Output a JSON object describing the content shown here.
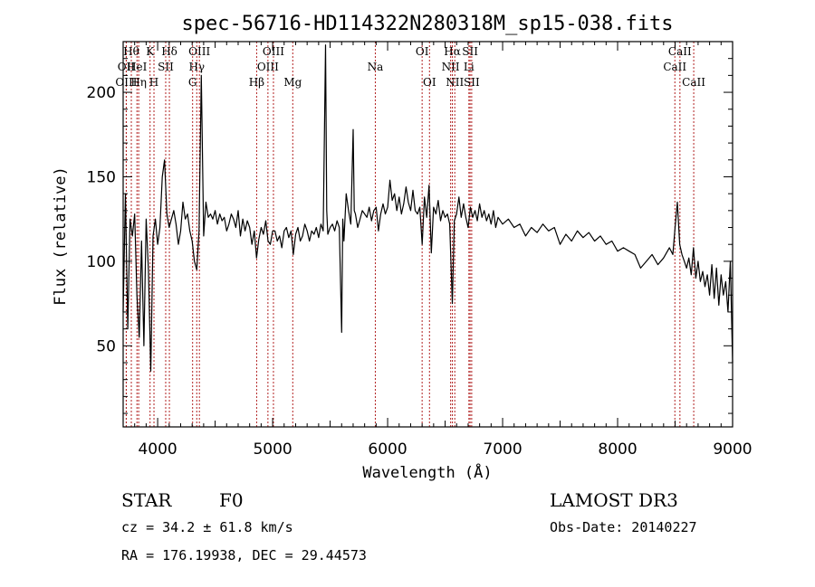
{
  "chart_data": {
    "type": "line",
    "title": "spec-56716-HD114322N280318M_sp15-038.fits",
    "xlabel": "Wavelength (Å)",
    "ylabel": "Flux (relative)",
    "xlim": [
      3700,
      9000
    ],
    "ylim": [
      2,
      230
    ],
    "xticks": [
      4000,
      5000,
      6000,
      7000,
      8000,
      9000
    ],
    "yticks": [
      50,
      100,
      150,
      200
    ],
    "grid": false,
    "line_color": "#000000",
    "marker_color": "#b22222",
    "series": [
      {
        "points": [
          [
            3700,
            70
          ],
          [
            3720,
            140
          ],
          [
            3740,
            60
          ],
          [
            3760,
            125
          ],
          [
            3780,
            115
          ],
          [
            3800,
            128
          ],
          [
            3820,
            80
          ],
          [
            3840,
            55
          ],
          [
            3860,
            112
          ],
          [
            3880,
            50
          ],
          [
            3900,
            125
          ],
          [
            3920,
            95
          ],
          [
            3940,
            35
          ],
          [
            3960,
            115
          ],
          [
            3980,
            125
          ],
          [
            4000,
            110
          ],
          [
            4020,
            120
          ],
          [
            4040,
            150
          ],
          [
            4060,
            160
          ],
          [
            4080,
            128
          ],
          [
            4100,
            120
          ],
          [
            4120,
            125
          ],
          [
            4140,
            130
          ],
          [
            4160,
            122
          ],
          [
            4180,
            110
          ],
          [
            4200,
            118
          ],
          [
            4220,
            135
          ],
          [
            4240,
            125
          ],
          [
            4260,
            128
          ],
          [
            4280,
            118
          ],
          [
            4300,
            112
          ],
          [
            4320,
            100
          ],
          [
            4340,
            95
          ],
          [
            4360,
            118
          ],
          [
            4380,
            210
          ],
          [
            4400,
            115
          ],
          [
            4420,
            135
          ],
          [
            4440,
            126
          ],
          [
            4460,
            128
          ],
          [
            4480,
            125
          ],
          [
            4500,
            130
          ],
          [
            4520,
            122
          ],
          [
            4540,
            128
          ],
          [
            4560,
            124
          ],
          [
            4580,
            126
          ],
          [
            4600,
            118
          ],
          [
            4620,
            122
          ],
          [
            4640,
            128
          ],
          [
            4660,
            125
          ],
          [
            4680,
            120
          ],
          [
            4700,
            130
          ],
          [
            4720,
            115
          ],
          [
            4740,
            125
          ],
          [
            4760,
            118
          ],
          [
            4780,
            124
          ],
          [
            4800,
            120
          ],
          [
            4820,
            110
          ],
          [
            4840,
            118
          ],
          [
            4860,
            102
          ],
          [
            4880,
            113
          ],
          [
            4900,
            120
          ],
          [
            4920,
            116
          ],
          [
            4940,
            124
          ],
          [
            4960,
            112
          ],
          [
            4980,
            110
          ],
          [
            5000,
            118
          ],
          [
            5020,
            118
          ],
          [
            5040,
            112
          ],
          [
            5060,
            115
          ],
          [
            5080,
            108
          ],
          [
            5100,
            118
          ],
          [
            5120,
            120
          ],
          [
            5140,
            114
          ],
          [
            5160,
            118
          ],
          [
            5180,
            104
          ],
          [
            5200,
            116
          ],
          [
            5220,
            120
          ],
          [
            5240,
            112
          ],
          [
            5260,
            115
          ],
          [
            5280,
            122
          ],
          [
            5300,
            118
          ],
          [
            5320,
            112
          ],
          [
            5340,
            118
          ],
          [
            5360,
            116
          ],
          [
            5380,
            120
          ],
          [
            5400,
            114
          ],
          [
            5420,
            122
          ],
          [
            5440,
            118
          ],
          [
            5460,
            228
          ],
          [
            5470,
            130
          ],
          [
            5480,
            116
          ],
          [
            5500,
            120
          ],
          [
            5520,
            122
          ],
          [
            5540,
            118
          ],
          [
            5560,
            124
          ],
          [
            5580,
            120
          ],
          [
            5600,
            58
          ],
          [
            5610,
            125
          ],
          [
            5620,
            112
          ],
          [
            5640,
            140
          ],
          [
            5660,
            130
          ],
          [
            5680,
            122
          ],
          [
            5700,
            178
          ],
          [
            5710,
            130
          ],
          [
            5720,
            128
          ],
          [
            5740,
            120
          ],
          [
            5760,
            125
          ],
          [
            5780,
            130
          ],
          [
            5800,
            128
          ],
          [
            5820,
            126
          ],
          [
            5840,
            132
          ],
          [
            5860,
            124
          ],
          [
            5880,
            130
          ],
          [
            5900,
            132
          ],
          [
            5920,
            118
          ],
          [
            5940,
            128
          ],
          [
            5960,
            134
          ],
          [
            5980,
            128
          ],
          [
            6000,
            132
          ],
          [
            6020,
            148
          ],
          [
            6040,
            136
          ],
          [
            6060,
            140
          ],
          [
            6080,
            130
          ],
          [
            6100,
            138
          ],
          [
            6120,
            128
          ],
          [
            6140,
            134
          ],
          [
            6160,
            144
          ],
          [
            6180,
            135
          ],
          [
            6200,
            130
          ],
          [
            6220,
            142
          ],
          [
            6240,
            130
          ],
          [
            6260,
            128
          ],
          [
            6280,
            132
          ],
          [
            6300,
            110
          ],
          [
            6320,
            138
          ],
          [
            6340,
            126
          ],
          [
            6360,
            145
          ],
          [
            6380,
            105
          ],
          [
            6400,
            132
          ],
          [
            6420,
            128
          ],
          [
            6440,
            136
          ],
          [
            6460,
            124
          ],
          [
            6480,
            130
          ],
          [
            6500,
            126
          ],
          [
            6520,
            128
          ],
          [
            6540,
            122
          ],
          [
            6563,
            75
          ],
          [
            6580,
            124
          ],
          [
            6600,
            128
          ],
          [
            6620,
            138
          ],
          [
            6640,
            126
          ],
          [
            6660,
            134
          ],
          [
            6680,
            126
          ],
          [
            6700,
            120
          ],
          [
            6720,
            132
          ],
          [
            6740,
            126
          ],
          [
            6760,
            130
          ],
          [
            6780,
            124
          ],
          [
            6800,
            134
          ],
          [
            6820,
            126
          ],
          [
            6840,
            130
          ],
          [
            6860,
            124
          ],
          [
            6880,
            128
          ],
          [
            6900,
            122
          ],
          [
            6920,
            130
          ],
          [
            6940,
            120
          ],
          [
            6960,
            126
          ],
          [
            6980,
            124
          ],
          [
            7000,
            122
          ],
          [
            7050,
            125
          ],
          [
            7100,
            120
          ],
          [
            7150,
            122
          ],
          [
            7200,
            115
          ],
          [
            7250,
            120
          ],
          [
            7300,
            117
          ],
          [
            7350,
            122
          ],
          [
            7400,
            118
          ],
          [
            7450,
            120
          ],
          [
            7500,
            110
          ],
          [
            7550,
            116
          ],
          [
            7600,
            112
          ],
          [
            7650,
            118
          ],
          [
            7700,
            114
          ],
          [
            7750,
            117
          ],
          [
            7800,
            112
          ],
          [
            7850,
            115
          ],
          [
            7900,
            110
          ],
          [
            7950,
            112
          ],
          [
            8000,
            106
          ],
          [
            8050,
            108
          ],
          [
            8100,
            106
          ],
          [
            8150,
            104
          ],
          [
            8200,
            96
          ],
          [
            8250,
            100
          ],
          [
            8300,
            104
          ],
          [
            8350,
            98
          ],
          [
            8400,
            102
          ],
          [
            8450,
            108
          ],
          [
            8480,
            104
          ],
          [
            8500,
            120
          ],
          [
            8520,
            135
          ],
          [
            8540,
            110
          ],
          [
            8560,
            104
          ],
          [
            8580,
            100
          ],
          [
            8600,
            96
          ],
          [
            8620,
            102
          ],
          [
            8640,
            92
          ],
          [
            8660,
            108
          ],
          [
            8680,
            90
          ],
          [
            8700,
            100
          ],
          [
            8720,
            88
          ],
          [
            8740,
            94
          ],
          [
            8760,
            85
          ],
          [
            8780,
            92
          ],
          [
            8800,
            80
          ],
          [
            8820,
            98
          ],
          [
            8840,
            78
          ],
          [
            8860,
            96
          ],
          [
            8880,
            74
          ],
          [
            8900,
            92
          ],
          [
            8920,
            80
          ],
          [
            8940,
            88
          ],
          [
            8960,
            70
          ],
          [
            8980,
            100
          ],
          [
            9000,
            40
          ]
        ]
      }
    ],
    "lines": [
      {
        "x": 3771,
        "label": "Hθ",
        "row": 1
      },
      {
        "x": 3727,
        "label": "OII",
        "row": 2
      },
      {
        "x": 3727,
        "label": "OIII",
        "row": 3
      },
      {
        "x": 3820,
        "label": "HeI",
        "row": 2
      },
      {
        "x": 3835,
        "label": "Hη",
        "row": 3
      },
      {
        "x": 3934,
        "label": "K",
        "row": 1
      },
      {
        "x": 3968,
        "label": "H",
        "row": 3
      },
      {
        "x": 4070,
        "label": "SII",
        "row": 2
      },
      {
        "x": 4102,
        "label": "Hδ",
        "row": 1
      },
      {
        "x": 4304,
        "label": "G",
        "row": 3
      },
      {
        "x": 4340,
        "label": "Hγ",
        "row": 2
      },
      {
        "x": 4363,
        "label": "OIII",
        "row": 1
      },
      {
        "x": 4861,
        "label": "Hβ",
        "row": 3
      },
      {
        "x": 4959,
        "label": "OIII",
        "row": 2
      },
      {
        "x": 5007,
        "label": "OIII",
        "row": 1
      },
      {
        "x": 5175,
        "label": "Mg",
        "row": 3
      },
      {
        "x": 5893,
        "label": "Na",
        "row": 2
      },
      {
        "x": 6300,
        "label": "OI",
        "row": 1
      },
      {
        "x": 6364,
        "label": "OI",
        "row": 3
      },
      {
        "x": 6548,
        "label": "NII",
        "row": 2
      },
      {
        "x": 6563,
        "label": "Hα",
        "row": 1
      },
      {
        "x": 6584,
        "label": "NII",
        "row": 3
      },
      {
        "x": 6707,
        "label": "Li",
        "row": 2
      },
      {
        "x": 6717,
        "label": "SII",
        "row": 1
      },
      {
        "x": 6731,
        "label": "SII",
        "row": 3
      },
      {
        "x": 8498,
        "label": "CaII",
        "row": 2
      },
      {
        "x": 8542,
        "label": "CaII",
        "row": 1
      },
      {
        "x": 8662,
        "label": "CaII",
        "row": 3
      }
    ]
  },
  "info": {
    "class": "STAR",
    "subclass": "F0",
    "survey": "LAMOST DR3",
    "cz": "cz = 34.2 ± 61.8 km/s",
    "obs_date": "Obs-Date: 20140227",
    "radec": "RA = 176.19938, DEC =  29.44573"
  }
}
